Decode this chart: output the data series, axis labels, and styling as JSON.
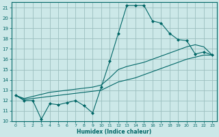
{
  "xlabel": "Humidex (Indice chaleur)",
  "bg_color": "#cce8e8",
  "grid_color": "#9bbfbf",
  "line_color": "#006666",
  "xlim": [
    -0.5,
    23.5
  ],
  "ylim": [
    10,
    21.5
  ],
  "xticks": [
    0,
    1,
    2,
    3,
    4,
    5,
    6,
    7,
    8,
    9,
    10,
    11,
    12,
    13,
    14,
    15,
    16,
    17,
    18,
    19,
    20,
    21,
    22,
    23
  ],
  "yticks": [
    10,
    11,
    12,
    13,
    14,
    15,
    16,
    17,
    18,
    19,
    20,
    21
  ],
  "line1_x": [
    0,
    1,
    2,
    3,
    4,
    5,
    6,
    7,
    8,
    9,
    10,
    11,
    12,
    13,
    14,
    15,
    16,
    17,
    18,
    19,
    20,
    21,
    22,
    23
  ],
  "line1_y": [
    12.5,
    12.0,
    12.0,
    10.2,
    11.7,
    11.6,
    11.8,
    12.0,
    11.5,
    10.8,
    13.3,
    15.8,
    18.5,
    21.2,
    21.2,
    21.2,
    19.7,
    19.5,
    18.5,
    17.9,
    17.8,
    16.5,
    16.7,
    16.4
  ],
  "line2_x": [
    0,
    1,
    2,
    3,
    4,
    5,
    6,
    7,
    8,
    9,
    10,
    11,
    12,
    13,
    14,
    15,
    16,
    17,
    18,
    19,
    20,
    21,
    22,
    23
  ],
  "line2_y": [
    12.5,
    12.2,
    12.4,
    12.6,
    12.8,
    12.9,
    13.0,
    13.1,
    13.2,
    13.3,
    13.5,
    14.2,
    15.0,
    15.3,
    15.5,
    15.7,
    16.0,
    16.3,
    16.6,
    16.9,
    17.2,
    17.4,
    17.2,
    16.4
  ],
  "line3_x": [
    0,
    1,
    2,
    3,
    4,
    5,
    6,
    7,
    8,
    9,
    10,
    11,
    12,
    13,
    14,
    15,
    16,
    17,
    18,
    19,
    20,
    21,
    22,
    23
  ],
  "line3_y": [
    12.5,
    12.1,
    12.2,
    12.3,
    12.4,
    12.5,
    12.6,
    12.7,
    12.8,
    12.9,
    13.0,
    13.4,
    13.8,
    14.0,
    14.2,
    14.5,
    14.8,
    15.1,
    15.4,
    15.7,
    16.0,
    16.2,
    16.4,
    16.4
  ]
}
